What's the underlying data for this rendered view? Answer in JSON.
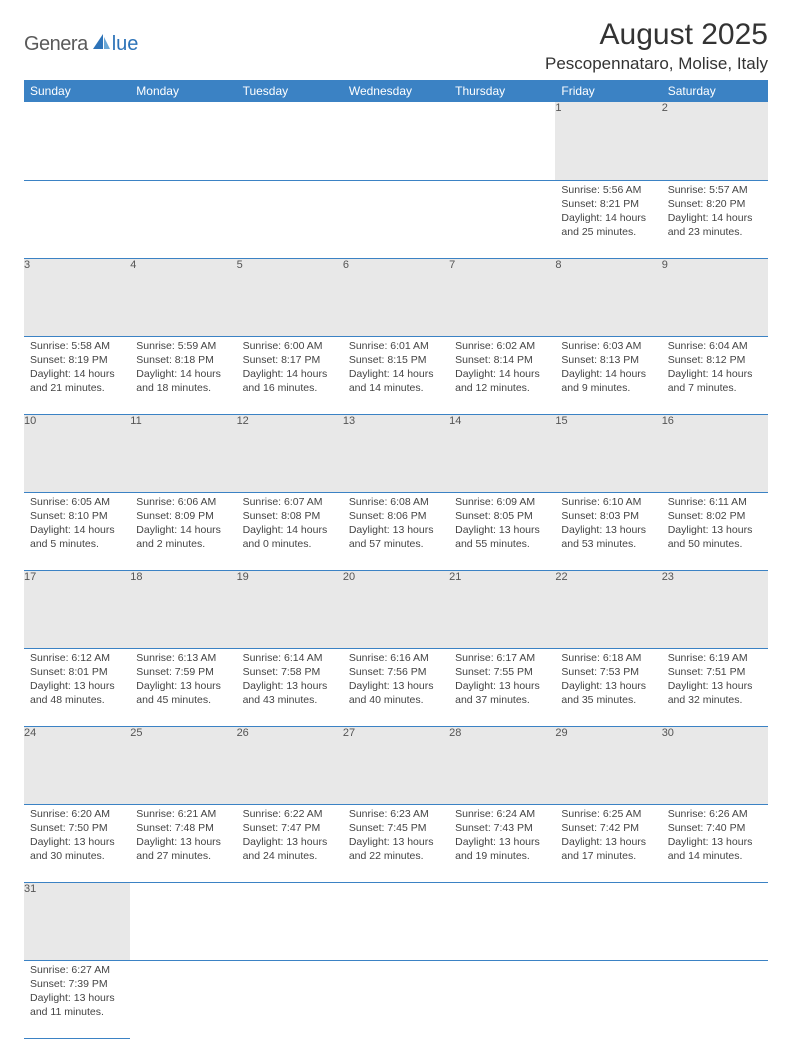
{
  "logo": {
    "part1": "Genera",
    "part2": "lue"
  },
  "title": "August 2025",
  "location": "Pescopennataro, Molise, Italy",
  "colors": {
    "header_bg": "#3b82c4",
    "header_fg": "#ffffff",
    "daynum_bg": "#e8e8e8",
    "rule": "#3b82c4",
    "logo_gray": "#5a5a5a",
    "logo_blue": "#2d73b8"
  },
  "weekdays": [
    "Sunday",
    "Monday",
    "Tuesday",
    "Wednesday",
    "Thursday",
    "Friday",
    "Saturday"
  ],
  "weeks": [
    [
      null,
      null,
      null,
      null,
      null,
      {
        "n": "1",
        "sr": "5:56 AM",
        "ss": "8:21 PM",
        "dl": "14 hours and 25 minutes."
      },
      {
        "n": "2",
        "sr": "5:57 AM",
        "ss": "8:20 PM",
        "dl": "14 hours and 23 minutes."
      }
    ],
    [
      {
        "n": "3",
        "sr": "5:58 AM",
        "ss": "8:19 PM",
        "dl": "14 hours and 21 minutes."
      },
      {
        "n": "4",
        "sr": "5:59 AM",
        "ss": "8:18 PM",
        "dl": "14 hours and 18 minutes."
      },
      {
        "n": "5",
        "sr": "6:00 AM",
        "ss": "8:17 PM",
        "dl": "14 hours and 16 minutes."
      },
      {
        "n": "6",
        "sr": "6:01 AM",
        "ss": "8:15 PM",
        "dl": "14 hours and 14 minutes."
      },
      {
        "n": "7",
        "sr": "6:02 AM",
        "ss": "8:14 PM",
        "dl": "14 hours and 12 minutes."
      },
      {
        "n": "8",
        "sr": "6:03 AM",
        "ss": "8:13 PM",
        "dl": "14 hours and 9 minutes."
      },
      {
        "n": "9",
        "sr": "6:04 AM",
        "ss": "8:12 PM",
        "dl": "14 hours and 7 minutes."
      }
    ],
    [
      {
        "n": "10",
        "sr": "6:05 AM",
        "ss": "8:10 PM",
        "dl": "14 hours and 5 minutes."
      },
      {
        "n": "11",
        "sr": "6:06 AM",
        "ss": "8:09 PM",
        "dl": "14 hours and 2 minutes."
      },
      {
        "n": "12",
        "sr": "6:07 AM",
        "ss": "8:08 PM",
        "dl": "14 hours and 0 minutes."
      },
      {
        "n": "13",
        "sr": "6:08 AM",
        "ss": "8:06 PM",
        "dl": "13 hours and 57 minutes."
      },
      {
        "n": "14",
        "sr": "6:09 AM",
        "ss": "8:05 PM",
        "dl": "13 hours and 55 minutes."
      },
      {
        "n": "15",
        "sr": "6:10 AM",
        "ss": "8:03 PM",
        "dl": "13 hours and 53 minutes."
      },
      {
        "n": "16",
        "sr": "6:11 AM",
        "ss": "8:02 PM",
        "dl": "13 hours and 50 minutes."
      }
    ],
    [
      {
        "n": "17",
        "sr": "6:12 AM",
        "ss": "8:01 PM",
        "dl": "13 hours and 48 minutes."
      },
      {
        "n": "18",
        "sr": "6:13 AM",
        "ss": "7:59 PM",
        "dl": "13 hours and 45 minutes."
      },
      {
        "n": "19",
        "sr": "6:14 AM",
        "ss": "7:58 PM",
        "dl": "13 hours and 43 minutes."
      },
      {
        "n": "20",
        "sr": "6:16 AM",
        "ss": "7:56 PM",
        "dl": "13 hours and 40 minutes."
      },
      {
        "n": "21",
        "sr": "6:17 AM",
        "ss": "7:55 PM",
        "dl": "13 hours and 37 minutes."
      },
      {
        "n": "22",
        "sr": "6:18 AM",
        "ss": "7:53 PM",
        "dl": "13 hours and 35 minutes."
      },
      {
        "n": "23",
        "sr": "6:19 AM",
        "ss": "7:51 PM",
        "dl": "13 hours and 32 minutes."
      }
    ],
    [
      {
        "n": "24",
        "sr": "6:20 AM",
        "ss": "7:50 PM",
        "dl": "13 hours and 30 minutes."
      },
      {
        "n": "25",
        "sr": "6:21 AM",
        "ss": "7:48 PM",
        "dl": "13 hours and 27 minutes."
      },
      {
        "n": "26",
        "sr": "6:22 AM",
        "ss": "7:47 PM",
        "dl": "13 hours and 24 minutes."
      },
      {
        "n": "27",
        "sr": "6:23 AM",
        "ss": "7:45 PM",
        "dl": "13 hours and 22 minutes."
      },
      {
        "n": "28",
        "sr": "6:24 AM",
        "ss": "7:43 PM",
        "dl": "13 hours and 19 minutes."
      },
      {
        "n": "29",
        "sr": "6:25 AM",
        "ss": "7:42 PM",
        "dl": "13 hours and 17 minutes."
      },
      {
        "n": "30",
        "sr": "6:26 AM",
        "ss": "7:40 PM",
        "dl": "13 hours and 14 minutes."
      }
    ],
    [
      {
        "n": "31",
        "sr": "6:27 AM",
        "ss": "7:39 PM",
        "dl": "13 hours and 11 minutes."
      },
      null,
      null,
      null,
      null,
      null,
      null
    ]
  ],
  "labels": {
    "sunrise": "Sunrise:",
    "sunset": "Sunset:",
    "daylight": "Daylight:"
  }
}
